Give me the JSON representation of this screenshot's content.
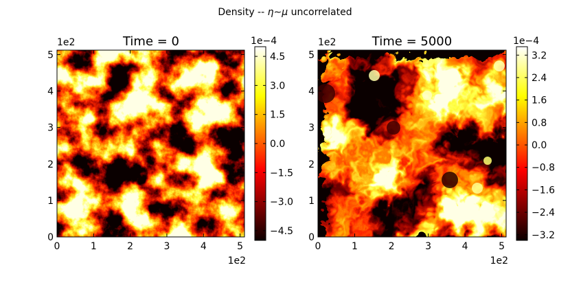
{
  "figure": {
    "suptitle_prefix": "Density -- ",
    "suptitle_math": "η∼μ",
    "suptitle_suffix": " uncorrelated"
  },
  "chart_data": [
    {
      "type": "heatmap",
      "title": "Time = 0",
      "description": "random fractal density field",
      "x_range": [
        0,
        512
      ],
      "y_range": [
        0,
        512
      ],
      "x_ticks": [
        "0",
        "1",
        "2",
        "3",
        "4",
        "5"
      ],
      "y_ticks": [
        "0",
        "1",
        "2",
        "3",
        "4",
        "5"
      ],
      "x_offset_label": "1e2",
      "y_offset_label": "1e2",
      "colormap": "hot",
      "colorbar": {
        "range": [
          -5.0,
          5.0
        ],
        "offset_label": "1e−4",
        "ticks": [
          {
            "value": 4.5,
            "label": "4.5"
          },
          {
            "value": 3.0,
            "label": "3.0"
          },
          {
            "value": 1.5,
            "label": "1.5"
          },
          {
            "value": 0.0,
            "label": "0.0"
          },
          {
            "value": -1.5,
            "label": "−1.5"
          },
          {
            "value": -3.0,
            "label": "−3.0"
          },
          {
            "value": -4.5,
            "label": "−4.5"
          }
        ]
      }
    },
    {
      "type": "heatmap",
      "title": "Time = 5000",
      "description": "turbulent vortex density field",
      "x_range": [
        0,
        512
      ],
      "y_range": [
        0,
        512
      ],
      "x_ticks": [
        "0",
        "1",
        "2",
        "3",
        "4",
        "5"
      ],
      "y_ticks": [
        "0",
        "1",
        "2",
        "3",
        "4",
        "5"
      ],
      "x_offset_label": "1e2",
      "y_offset_label": "1e2",
      "colormap": "hot",
      "colorbar": {
        "range": [
          -3.4,
          3.5
        ],
        "offset_label": "1e−4",
        "ticks": [
          {
            "value": 3.2,
            "label": "3.2"
          },
          {
            "value": 2.4,
            "label": "2.4"
          },
          {
            "value": 1.6,
            "label": "1.6"
          },
          {
            "value": 0.8,
            "label": "0.8"
          },
          {
            "value": 0.0,
            "label": "0.0"
          },
          {
            "value": -0.8,
            "label": "−0.8"
          },
          {
            "value": -1.6,
            "label": "−1.6"
          },
          {
            "value": -2.4,
            "label": "−2.4"
          },
          {
            "value": -3.2,
            "label": "−3.2"
          }
        ]
      }
    }
  ],
  "colors": {
    "hot_stops": [
      "#0b0000",
      "#ff0000",
      "#ffff00",
      "#ffffff"
    ],
    "axes": "#000000"
  }
}
